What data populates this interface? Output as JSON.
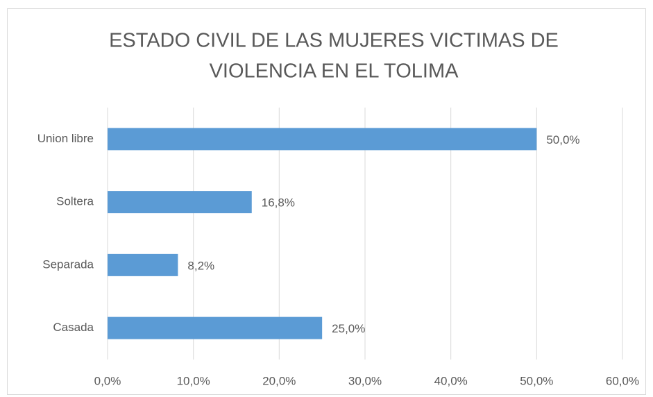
{
  "chart_data": {
    "type": "bar",
    "orientation": "horizontal",
    "title": [
      "ESTADO CIVIL DE LAS MUJERES VICTIMAS DE",
      "VIOLENCIA EN EL TOLIMA"
    ],
    "categories": [
      "Union libre",
      "Soltera",
      "Separada",
      "Casada"
    ],
    "values": [
      50.0,
      16.8,
      8.2,
      25.0
    ],
    "value_labels": [
      "50,0%",
      "16,8%",
      "8,2%",
      "25,0%"
    ],
    "color": "#5b9bd5",
    "xlim": [
      0,
      60
    ],
    "xticks": [
      {
        "value": 0,
        "label": "0,0%"
      },
      {
        "value": 10,
        "label": "10,0%"
      },
      {
        "value": 20,
        "label": "20,0%"
      },
      {
        "value": 30,
        "label": "30,0%"
      },
      {
        "value": 40,
        "label": "40,0%"
      },
      {
        "value": 50,
        "label": "50,0%"
      },
      {
        "value": 60,
        "label": "60,0%"
      }
    ],
    "grid": true
  }
}
